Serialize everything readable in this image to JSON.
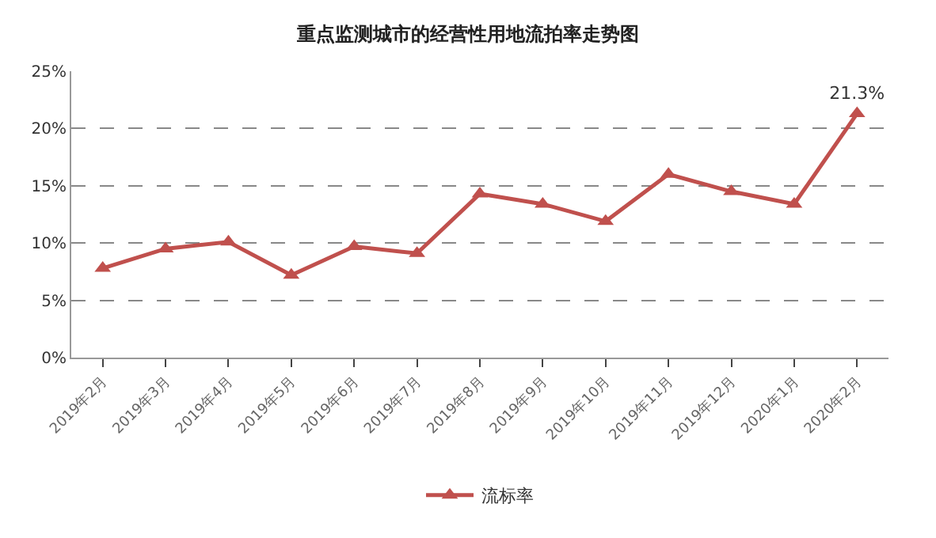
{
  "chart_data": {
    "type": "line",
    "title": "重点监测城市的经营性用地流拍率走势图",
    "categories": [
      "2019年2月",
      "2019年3月",
      "2019年4月",
      "2019年5月",
      "2019年6月",
      "2019年7月",
      "2019年8月",
      "2019年9月",
      "2019年10月",
      "2019年11月",
      "2019年12月",
      "2020年1月",
      "2020年2月"
    ],
    "series": [
      {
        "name": "流标率",
        "color": "#c0504d",
        "values": [
          7.8,
          9.5,
          10.1,
          7.2,
          9.7,
          9.1,
          14.3,
          13.4,
          11.9,
          16.0,
          14.5,
          13.4,
          21.3
        ],
        "value_labels": [
          null,
          null,
          null,
          null,
          null,
          null,
          null,
          null,
          null,
          null,
          null,
          null,
          "21.3%"
        ]
      }
    ],
    "ylim": [
      0,
      25
    ],
    "yticks": [
      {
        "value": 0,
        "label": "0%"
      },
      {
        "value": 5,
        "label": "5%"
      },
      {
        "value": 10,
        "label": "10%"
      },
      {
        "value": 15,
        "label": "15%"
      },
      {
        "value": 20,
        "label": "20%"
      },
      {
        "value": 25,
        "label": "25%"
      }
    ],
    "grid": "y",
    "legend": "bottom",
    "marker": "triangle",
    "line_style": "solid"
  }
}
